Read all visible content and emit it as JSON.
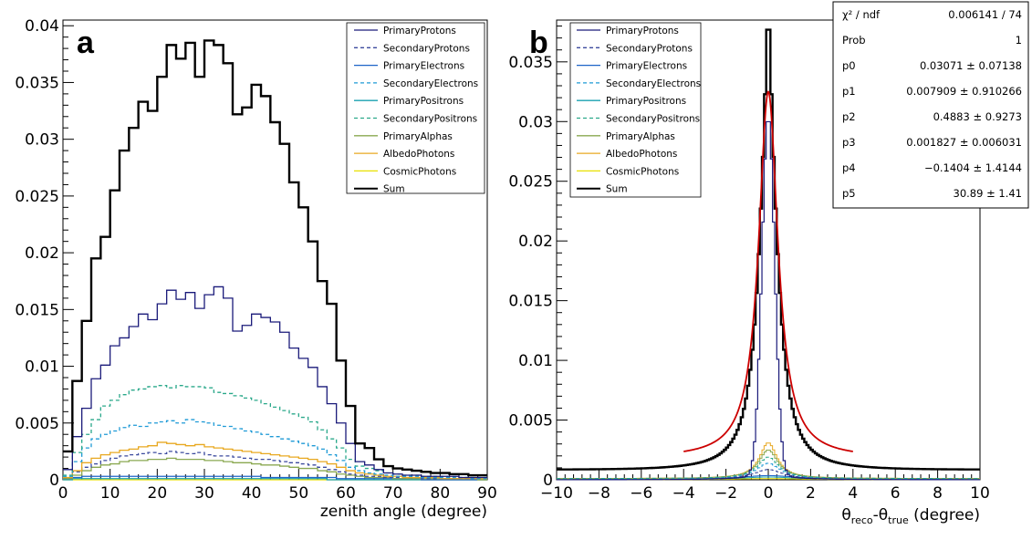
{
  "panels": {
    "a": {
      "letter": "a"
    },
    "b": {
      "letter": "b"
    }
  },
  "colors": {
    "PrimaryProtons": "#1a1a7a",
    "SecondaryProtons": "#3b4a9e",
    "PrimaryElectrons": "#1e64c8",
    "SecondaryElectrons": "#1e9ad6",
    "PrimaryPositrons": "#1aa0b0",
    "SecondaryPositrons": "#2aa88a",
    "PrimaryAlphas": "#8aa850",
    "AlbedoPhotons": "#e8a820",
    "CosmicPhotons": "#e8e000",
    "Sum": "#000000",
    "fit": "#cc0000"
  },
  "chart_data": [
    {
      "type": "line",
      "panel": "a",
      "xlabel": "zenith angle (degree)",
      "ylabel": "",
      "xlim": [
        0,
        90
      ],
      "ylim": [
        0,
        0.0405
      ],
      "x_ticks": [
        "0",
        "10",
        "20",
        "30",
        "40",
        "50",
        "60",
        "70",
        "80",
        "90"
      ],
      "y_ticks": [
        "0",
        "0.005",
        "0.01",
        "0.015",
        "0.02",
        "0.025",
        "0.03",
        "0.035",
        "0.04"
      ],
      "bin_edges_start": 0,
      "bin_width": 2,
      "legend": [
        "PrimaryProtons",
        "SecondaryProtons",
        "PrimaryElectrons",
        "SecondaryElectrons",
        "PrimaryPositrons",
        "SecondaryPositrons",
        "PrimaryAlphas",
        "AlbedoPhotons",
        "CosmicPhotons",
        "Sum"
      ],
      "series": [
        {
          "name": "Sum",
          "values": [
            0.0025,
            0.0087,
            0.014,
            0.0195,
            0.0214,
            0.0255,
            0.029,
            0.031,
            0.0333,
            0.0325,
            0.0355,
            0.0383,
            0.0371,
            0.0385,
            0.0355,
            0.0387,
            0.0383,
            0.0367,
            0.0322,
            0.0328,
            0.0348,
            0.0338,
            0.0315,
            0.0296,
            0.0262,
            0.024,
            0.021,
            0.0175,
            0.0155,
            0.0105,
            0.0065,
            0.0032,
            0.0028,
            0.0018,
            0.0012,
            0.001,
            0.0009,
            0.0008,
            0.0007,
            0.0006,
            0.0006,
            0.0005,
            0.0005,
            0.0004,
            0.0004
          ]
        },
        {
          "name": "PrimaryProtons",
          "values": [
            0.0009,
            0.0038,
            0.0063,
            0.0089,
            0.0101,
            0.0118,
            0.0125,
            0.0135,
            0.0146,
            0.0141,
            0.0155,
            0.0167,
            0.0159,
            0.0165,
            0.0151,
            0.0163,
            0.017,
            0.016,
            0.0131,
            0.0136,
            0.0146,
            0.0143,
            0.0139,
            0.013,
            0.0116,
            0.0107,
            0.0099,
            0.0082,
            0.0067,
            0.005,
            0.0032,
            0.0016,
            0.0013,
            0.0009,
            0.0006,
            0.0005,
            0.0004,
            0.0004,
            0.0003,
            0.0003,
            0.0003,
            0.0003,
            0.0002,
            0.0002,
            0.0002
          ]
        },
        {
          "name": "SecondaryPositrons",
          "values": [
            0.0004,
            0.0024,
            0.004,
            0.0053,
            0.0065,
            0.007,
            0.0075,
            0.0079,
            0.008,
            0.0082,
            0.0083,
            0.0081,
            0.0083,
            0.0082,
            0.0082,
            0.0081,
            0.0077,
            0.0076,
            0.0074,
            0.0072,
            0.007,
            0.0067,
            0.0064,
            0.0061,
            0.0058,
            0.0055,
            0.0051,
            0.0044,
            0.0036,
            0.0028,
            0.0018,
            0.0012,
            0.001,
            0.0008,
            0.0006,
            0.0005,
            0.0004,
            0.0004,
            0.0003,
            0.0003,
            0.0003,
            0.0003,
            0.0002,
            0.0002,
            0.0002
          ]
        },
        {
          "name": "SecondaryElectrons",
          "values": [
            0.0003,
            0.0016,
            0.0028,
            0.0036,
            0.004,
            0.0043,
            0.0046,
            0.0048,
            0.0047,
            0.005,
            0.0051,
            0.0052,
            0.005,
            0.0053,
            0.0051,
            0.005,
            0.0048,
            0.0047,
            0.0045,
            0.0043,
            0.0042,
            0.004,
            0.0038,
            0.0036,
            0.0034,
            0.0032,
            0.003,
            0.0027,
            0.0022,
            0.0017,
            0.0011,
            0.0008,
            0.0006,
            0.0005,
            0.0004,
            0.0003,
            0.0003,
            0.0003,
            0.0002,
            0.0002,
            0.0002,
            0.0002,
            0.0002,
            0.0001,
            0.0001
          ]
        },
        {
          "name": "AlbedoPhotons",
          "values": [
            0.0002,
            0.0008,
            0.0015,
            0.0019,
            0.0022,
            0.0024,
            0.0026,
            0.0027,
            0.0029,
            0.003,
            0.0033,
            0.0032,
            0.0031,
            0.003,
            0.0031,
            0.0029,
            0.0028,
            0.0027,
            0.0026,
            0.0025,
            0.0024,
            0.0023,
            0.0022,
            0.0021,
            0.002,
            0.0019,
            0.0018,
            0.0016,
            0.0014,
            0.0011,
            0.0008,
            0.0006,
            0.0005,
            0.0004,
            0.0003,
            0.0003,
            0.0002,
            0.0002,
            0.0002,
            0.0002,
            0.0001,
            0.0001,
            0.0001,
            0.0001,
            0.0001
          ]
        },
        {
          "name": "SecondaryProtons",
          "values": [
            0.0002,
            0.0007,
            0.0011,
            0.0014,
            0.0017,
            0.0019,
            0.0021,
            0.0022,
            0.0023,
            0.0024,
            0.0023,
            0.0025,
            0.0024,
            0.0023,
            0.0024,
            0.0022,
            0.0021,
            0.0021,
            0.002,
            0.0019,
            0.0018,
            0.0018,
            0.0017,
            0.0016,
            0.0015,
            0.0014,
            0.0013,
            0.0011,
            0.0009,
            0.0007,
            0.0005,
            0.0004,
            0.0003,
            0.0003,
            0.0002,
            0.0002,
            0.0002,
            0.0002,
            0.0001,
            0.0001,
            0.0001,
            0.0001,
            0.0001,
            0.0001,
            0.0001
          ]
        },
        {
          "name": "PrimaryAlphas",
          "values": [
            0.0001,
            0.0004,
            0.0008,
            0.0011,
            0.0013,
            0.0014,
            0.0016,
            0.0017,
            0.0017,
            0.0018,
            0.0018,
            0.0019,
            0.0018,
            0.0018,
            0.0018,
            0.0017,
            0.0017,
            0.0016,
            0.0015,
            0.0015,
            0.0014,
            0.0013,
            0.0013,
            0.0012,
            0.0011,
            0.001,
            0.001,
            0.0008,
            0.0007,
            0.0005,
            0.0004,
            0.0003,
            0.0002,
            0.0002,
            0.0002,
            0.0001,
            0.0001,
            0.0001,
            0.0001,
            0.0001,
            0.0001,
            0.0001,
            0.0001,
            0.0001,
            0.0
          ]
        },
        {
          "name": "PrimaryElectrons",
          "values": [
            0.0001,
            0.0002,
            0.0003,
            0.0003,
            0.0003,
            0.0003,
            0.0003,
            0.0003,
            0.0003,
            0.0003,
            0.0003,
            0.0003,
            0.0003,
            0.0003,
            0.0003,
            0.0003,
            0.0003,
            0.0003,
            0.0003,
            0.0003,
            0.0003,
            0.0002,
            0.0002,
            0.0002,
            0.0002,
            0.0002,
            0.0002,
            0.0002,
            0.0002,
            0.0001,
            0.0001,
            0.0001,
            0.0001,
            0.0001,
            0.0001,
            0.0001,
            0.0001,
            0.0001,
            0.0,
            0.0,
            0.0,
            0.0,
            0.0,
            0.0,
            0.0
          ]
        },
        {
          "name": "PrimaryPositrons",
          "values": [
            0.0,
            0.0001,
            0.0001,
            0.0001,
            0.0001,
            0.0001,
            0.0001,
            0.0001,
            0.0001,
            0.0001,
            0.0001,
            0.0001,
            0.0001,
            0.0001,
            0.0001,
            0.0001,
            0.0001,
            0.0001,
            0.0001,
            0.0001,
            0.0001,
            0.0001,
            0.0001,
            0.0001,
            0.0001,
            0.0001,
            0.0001,
            0.0001,
            0.0,
            0.0,
            0.0,
            0.0,
            0.0,
            0.0,
            0.0,
            0.0,
            0.0,
            0.0,
            0.0,
            0.0,
            0.0,
            0.0,
            0.0,
            0.0,
            0.0
          ]
        },
        {
          "name": "CosmicPhotons",
          "values": [
            0.0,
            0.0,
            0.0,
            0.0,
            0.0,
            0.0,
            0.0,
            0.0,
            0.0,
            0.0,
            0.0,
            0.0,
            0.0,
            0.0,
            0.0,
            0.0,
            0.0,
            0.0,
            0.0,
            0.0,
            0.0,
            0.0,
            0.0,
            0.0,
            0.0,
            0.0,
            0.0,
            0.0,
            0.0,
            0.0,
            0.0,
            0.0,
            0.0,
            0.0,
            0.0,
            0.0,
            0.0,
            0.0,
            0.0,
            0.0,
            0.0,
            0.0,
            0.0,
            0.0,
            0.0
          ]
        }
      ]
    },
    {
      "type": "line",
      "panel": "b",
      "xlabel": "θreco-θtrue (degree)",
      "xlabel_parts": {
        "theta1": "θ",
        "sub1": "reco",
        "dash": "-θ",
        "sub2": "true",
        "unit": " (degree)"
      },
      "ylabel": "",
      "xlim": [
        -10,
        10
      ],
      "ylim": [
        0,
        0.0385
      ],
      "x_ticks": [
        "−10",
        "−8",
        "−6",
        "−4",
        "−2",
        "0",
        "2",
        "4",
        "6",
        "8",
        "10"
      ],
      "y_ticks": [
        "0",
        "0.005",
        "0.01",
        "0.015",
        "0.02",
        "0.025",
        "0.03",
        "0.035"
      ],
      "legend": [
        "PrimaryProtons",
        "SecondaryProtons",
        "PrimaryElectrons",
        "SecondaryElectrons",
        "PrimaryPositrons",
        "SecondaryPositrons",
        "PrimaryAlphas",
        "AlbedoPhotons",
        "CosmicPhotons",
        "Sum"
      ],
      "sum_peak": 0.038,
      "sum_tail": [
        0.0008,
        0.0009
      ],
      "primary_protons_peak": 0.03,
      "secondary_peak": 0.003,
      "fit": {
        "name": "fit",
        "range": [
          -4,
          4
        ],
        "peak": 0.0325,
        "baseline": 0.0018,
        "stats": [
          {
            "label": "χ² / ndf",
            "value": "0.006141 / 74"
          },
          {
            "label": "Prob",
            "value": "1"
          },
          {
            "label": "p0",
            "value": "0.03071 ± 0.07138"
          },
          {
            "label": "p1",
            "value": "0.007909 ± 0.910266"
          },
          {
            "label": "p2",
            "value": "0.4883 ± 0.9273"
          },
          {
            "label": "p3",
            "value": "0.001827 ± 0.006031"
          },
          {
            "label": "p4",
            "value": "−0.1404 ± 1.4144"
          },
          {
            "label": "p5",
            "value": "30.89 ± 1.41"
          }
        ]
      }
    }
  ]
}
